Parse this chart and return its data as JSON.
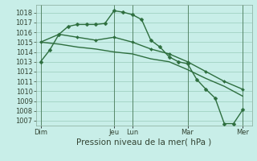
{
  "title": "",
  "xlabel": "Pression niveau de la mer( hPa )",
  "ylabel": "",
  "background_color": "#c8eee8",
  "grid_color": "#99ccbb",
  "line_color": "#2d6e3e",
  "ylim": [
    1006.5,
    1018.8
  ],
  "yticks": [
    1007,
    1008,
    1009,
    1010,
    1011,
    1012,
    1013,
    1014,
    1015,
    1016,
    1017,
    1018
  ],
  "day_labels": [
    "Dim",
    "Jeu",
    "Lun",
    "Mar",
    "Mer"
  ],
  "day_positions": [
    0,
    16,
    20,
    32,
    44
  ],
  "series": [
    {
      "x": [
        0,
        2,
        4,
        6,
        8,
        10,
        12,
        14,
        16,
        18,
        20,
        22,
        24,
        26,
        28,
        30,
        32,
        34,
        36,
        38,
        40,
        42,
        44
      ],
      "y": [
        1013.0,
        1014.2,
        1015.8,
        1016.6,
        1016.8,
        1016.8,
        1016.8,
        1016.9,
        1018.2,
        1018.05,
        1017.8,
        1017.3,
        1015.2,
        1014.5,
        1013.5,
        1013.0,
        1012.8,
        1011.2,
        1010.2,
        1009.3,
        1006.7,
        1006.7,
        1008.1
      ]
    },
    {
      "x": [
        0,
        4,
        8,
        12,
        16,
        20,
        24,
        28,
        32,
        36,
        40,
        44
      ],
      "y": [
        1015.0,
        1015.8,
        1015.5,
        1015.2,
        1015.5,
        1015.0,
        1014.3,
        1013.8,
        1013.0,
        1012.0,
        1011.0,
        1010.2
      ]
    },
    {
      "x": [
        0,
        4,
        8,
        12,
        16,
        20,
        24,
        28,
        32,
        36,
        40,
        44
      ],
      "y": [
        1015.0,
        1014.8,
        1014.5,
        1014.3,
        1014.0,
        1013.8,
        1013.3,
        1013.0,
        1012.2,
        1011.3,
        1010.5,
        1009.5
      ]
    }
  ],
  "marker_size": 2.5,
  "line_width": 1.0,
  "tick_fontsize": 6,
  "label_fontsize": 7.5,
  "xlim": [
    -1,
    46
  ]
}
